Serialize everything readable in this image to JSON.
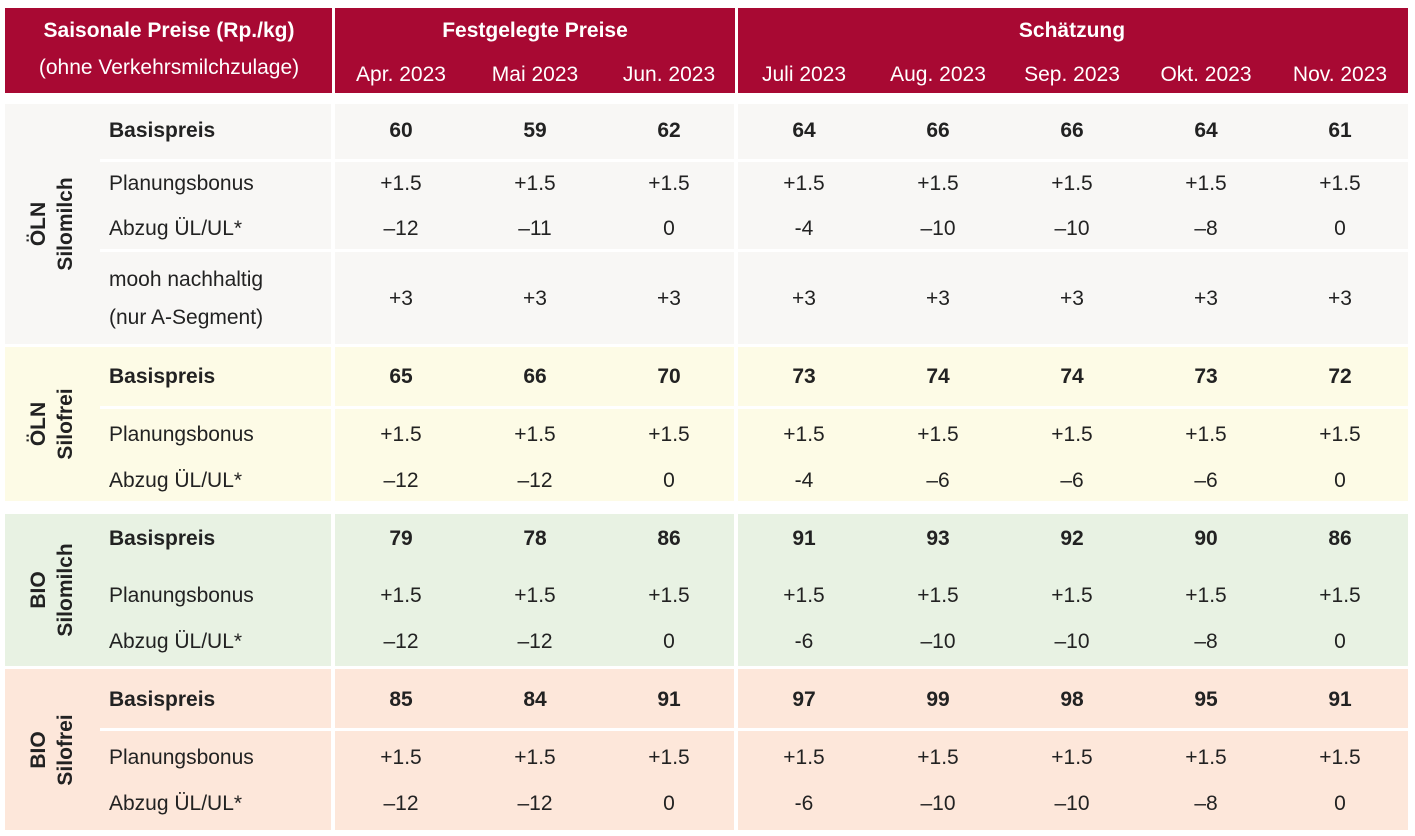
{
  "header": {
    "title_line1": "Saisonale Preise (Rp./kg)",
    "title_line2": "(ohne Verkehrsmilchzulage)",
    "group_fixed": "Festgelegte Preise",
    "group_estimate": "Schätzung",
    "months": [
      "Apr. 2023",
      "Mai 2023",
      "Jun. 2023",
      "Juli 2023",
      "Aug. 2023",
      "Sep. 2023",
      "Okt. 2023",
      "Nov. 2023"
    ]
  },
  "colors": {
    "header": "#a80933",
    "oln_silomilch": "#f8f7f5",
    "oln_silofrei": "#fdfbe6",
    "bio_silomilch": "#e8f2e3",
    "bio_silofrei": "#fde7da"
  },
  "sections": [
    {
      "label1": "ÖLN",
      "label2": "Silomilch",
      "rows": [
        {
          "label": "Basispreis",
          "bold": true,
          "values": [
            "60",
            "59",
            "62",
            "64",
            "66",
            "66",
            "64",
            "61"
          ]
        },
        {
          "label": "Planungsbonus",
          "values": [
            "+1.5",
            "+1.5",
            "+1.5",
            "+1.5",
            "+1.5",
            "+1.5",
            "+1.5",
            "+1.5"
          ]
        },
        {
          "label": "Abzug ÜL/UL*",
          "values": [
            "–12",
            "–11",
            "0",
            "-4",
            "–10",
            "–10",
            "–8",
            "0"
          ]
        },
        {
          "label": "mooh nachhaltig",
          "label_line2": "(nur A-Segment)",
          "values": [
            "+3",
            "+3",
            "+3",
            "+3",
            "+3",
            "+3",
            "+3",
            "+3"
          ]
        }
      ]
    },
    {
      "label1": "ÖLN",
      "label2": "Silofrei",
      "rows": [
        {
          "label": "Basispreis",
          "bold": true,
          "values": [
            "65",
            "66",
            "70",
            "73",
            "74",
            "74",
            "73",
            "72"
          ]
        },
        {
          "label": "Planungsbonus",
          "values": [
            "+1.5",
            "+1.5",
            "+1.5",
            "+1.5",
            "+1.5",
            "+1.5",
            "+1.5",
            "+1.5"
          ]
        },
        {
          "label": "Abzug ÜL/UL*",
          "values": [
            "–12",
            "–12",
            "0",
            "-4",
            "–6",
            "–6",
            "–6",
            "0"
          ]
        }
      ]
    },
    {
      "label1": "BIO",
      "label2": "Silomilch",
      "rows": [
        {
          "label": "Basispreis",
          "bold": true,
          "values": [
            "79",
            "78",
            "86",
            "91",
            "93",
            "92",
            "90",
            "86"
          ]
        },
        {
          "label": "Planungsbonus",
          "values": [
            "+1.5",
            "+1.5",
            "+1.5",
            "+1.5",
            "+1.5",
            "+1.5",
            "+1.5",
            "+1.5"
          ]
        },
        {
          "label": "Abzug ÜL/UL*",
          "values": [
            "–12",
            "–12",
            "0",
            "-6",
            "–10",
            "–10",
            "–8",
            "0"
          ]
        }
      ]
    },
    {
      "label1": "BIO",
      "label2": "Silofrei",
      "rows": [
        {
          "label": "Basispreis",
          "bold": true,
          "values": [
            "85",
            "84",
            "91",
            "97",
            "99",
            "98",
            "95",
            "91"
          ]
        },
        {
          "label": "Planungsbonus",
          "values": [
            "+1.5",
            "+1.5",
            "+1.5",
            "+1.5",
            "+1.5",
            "+1.5",
            "+1.5",
            "+1.5"
          ]
        },
        {
          "label": "Abzug ÜL/UL*",
          "values": [
            "–12",
            "–12",
            "0",
            "-6",
            "–10",
            "–10",
            "–8",
            "0"
          ]
        }
      ]
    }
  ]
}
